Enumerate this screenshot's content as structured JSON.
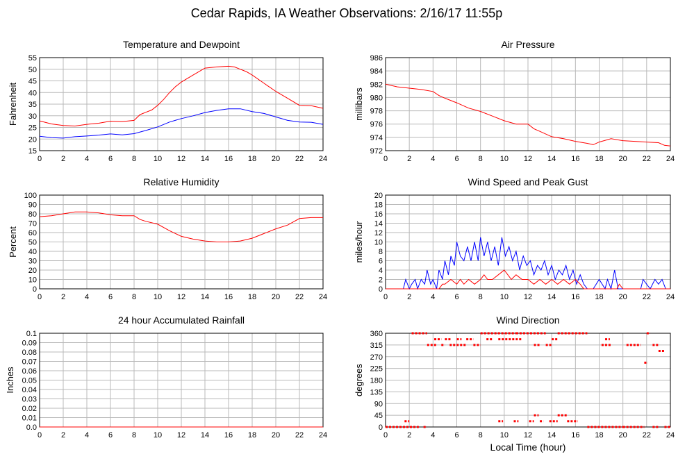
{
  "title": "Cedar Rapids, IA Weather Observations: 2/16/17 11:55p",
  "xlabel": "Local Time (hour)",
  "colors": {
    "red": "#ff0000",
    "blue": "#0000ff",
    "grid": "#b8b8b8"
  },
  "chart_data": [
    {
      "id": "temp",
      "type": "line",
      "title": "Temperature and Dewpoint",
      "ylabel": "Fahrenheit",
      "xlim": [
        0,
        24
      ],
      "ylim": [
        15,
        55
      ],
      "yticks": [
        15,
        20,
        25,
        30,
        35,
        40,
        45,
        50,
        55
      ],
      "ytick_labels": [
        "15",
        "20",
        "25",
        "30",
        "35",
        "40",
        "45",
        "50",
        "55"
      ],
      "xticks": [
        0,
        2,
        4,
        6,
        8,
        10,
        12,
        14,
        16,
        18,
        20,
        22,
        24
      ],
      "series": [
        {
          "color": "red",
          "x": [
            0,
            1,
            2,
            3,
            4,
            5,
            6,
            7,
            8,
            8.5,
            9,
            9.5,
            10,
            10.5,
            11,
            11.5,
            12,
            13,
            14,
            15,
            16,
            16.5,
            17,
            17.5,
            18,
            19,
            20,
            21,
            22,
            23,
            24
          ],
          "y": [
            27.8,
            26.5,
            25.8,
            25.6,
            26.3,
            26.8,
            27.7,
            27.5,
            28.0,
            30.5,
            31.5,
            32.5,
            34.5,
            37.0,
            40.0,
            42.5,
            44.5,
            47.5,
            50.5,
            51.0,
            51.3,
            51.0,
            50.0,
            49.0,
            47.5,
            44.0,
            40.5,
            37.5,
            34.5,
            34.3,
            33.2
          ]
        },
        {
          "color": "blue",
          "x": [
            0,
            1,
            2,
            3,
            4,
            5,
            6,
            7,
            8,
            9,
            10,
            11,
            12,
            13,
            14,
            15,
            16,
            17,
            18,
            19,
            20,
            21,
            22,
            23,
            24
          ],
          "y": [
            21.2,
            20.6,
            20.4,
            21.0,
            21.3,
            21.7,
            22.2,
            21.8,
            22.3,
            23.7,
            25.2,
            27.3,
            28.8,
            30.0,
            31.4,
            32.3,
            33.0,
            33.0,
            31.8,
            31.0,
            29.5,
            28.0,
            27.3,
            27.2,
            26.3
          ]
        }
      ]
    },
    {
      "id": "pressure",
      "type": "line",
      "title": "Air Pressure",
      "ylabel": "millibars",
      "xlim": [
        0,
        24
      ],
      "ylim": [
        972,
        986
      ],
      "yticks": [
        972,
        974,
        976,
        978,
        980,
        982,
        984,
        986
      ],
      "ytick_labels": [
        "972",
        "974",
        "976",
        "978",
        "980",
        "982",
        "984",
        "986"
      ],
      "xticks": [
        0,
        2,
        4,
        6,
        8,
        10,
        12,
        14,
        16,
        18,
        20,
        22,
        24
      ],
      "series": [
        {
          "color": "red",
          "x": [
            0,
            1,
            2,
            3,
            4,
            4.5,
            5,
            6,
            7,
            8,
            9,
            10,
            11,
            12,
            12.5,
            13,
            14,
            15,
            16,
            17,
            17.5,
            18,
            19,
            20,
            21,
            22,
            23,
            23.5,
            24
          ],
          "y": [
            982.0,
            981.6,
            981.4,
            981.2,
            980.9,
            980.3,
            979.9,
            979.2,
            978.4,
            977.9,
            977.2,
            976.5,
            976.0,
            976.0,
            975.3,
            974.9,
            974.1,
            973.8,
            973.4,
            973.1,
            972.9,
            973.3,
            973.8,
            973.5,
            973.4,
            973.3,
            973.2,
            972.8,
            972.7
          ]
        }
      ]
    },
    {
      "id": "humidity",
      "type": "line",
      "title": "Relative Humidity",
      "ylabel": "Percent",
      "xlim": [
        0,
        24
      ],
      "ylim": [
        0,
        100
      ],
      "yticks": [
        0,
        10,
        20,
        30,
        40,
        50,
        60,
        70,
        80,
        90,
        100
      ],
      "ytick_labels": [
        "0",
        "10",
        "20",
        "30",
        "40",
        "50",
        "60",
        "70",
        "80",
        "90",
        "100"
      ],
      "xticks": [
        0,
        2,
        4,
        6,
        8,
        10,
        12,
        14,
        16,
        18,
        20,
        22,
        24
      ],
      "series": [
        {
          "color": "red",
          "x": [
            0,
            1,
            2,
            3,
            4,
            5,
            6,
            7,
            8,
            8.5,
            9,
            10,
            11,
            12,
            13,
            14,
            15,
            16,
            17,
            18,
            19,
            20,
            21,
            22,
            23,
            24
          ],
          "y": [
            77,
            78,
            80,
            82,
            82,
            81,
            79,
            78,
            78,
            74,
            72,
            69,
            62,
            56,
            53,
            51,
            50,
            50,
            51,
            54,
            59,
            64,
            68,
            75,
            76,
            76
          ]
        }
      ]
    },
    {
      "id": "wind",
      "type": "line",
      "title": "Wind Speed and Peak Gust",
      "ylabel": "miles/hour",
      "xlim": [
        0,
        24
      ],
      "ylim": [
        0,
        20
      ],
      "yticks": [
        0,
        2,
        4,
        6,
        8,
        10,
        12,
        14,
        16,
        18,
        20
      ],
      "ytick_labels": [
        "0",
        "2",
        "4",
        "6",
        "8",
        "10",
        "12",
        "14",
        "16",
        "18",
        "20"
      ],
      "xticks": [
        0,
        2,
        4,
        6,
        8,
        10,
        12,
        14,
        16,
        18,
        20,
        22,
        24
      ],
      "series": [
        {
          "color": "blue",
          "x": [
            0,
            1.5,
            1.7,
            2,
            2.2,
            2.5,
            2.7,
            3.0,
            3.3,
            3.5,
            3.8,
            4.0,
            4.3,
            4.5,
            4.8,
            5.0,
            5.3,
            5.5,
            5.8,
            6.0,
            6.3,
            6.6,
            6.9,
            7.2,
            7.5,
            7.8,
            8.0,
            8.3,
            8.6,
            8.9,
            9.2,
            9.5,
            9.8,
            10.1,
            10.4,
            10.7,
            11.0,
            11.3,
            11.6,
            11.9,
            12.2,
            12.5,
            12.8,
            13.1,
            13.4,
            13.7,
            14.0,
            14.3,
            14.6,
            14.9,
            15.2,
            15.5,
            15.8,
            16.1,
            16.4,
            16.7,
            17.0,
            17.5,
            18.0,
            18.5,
            18.7,
            19.0,
            19.3,
            19.6,
            20.0,
            21.5,
            21.7,
            22.0,
            22.3,
            22.7,
            23.0,
            23.3,
            23.6,
            24
          ],
          "y": [
            0,
            0,
            2,
            0,
            1,
            2,
            0,
            2,
            1,
            4,
            1,
            2,
            0,
            4,
            2,
            6,
            3,
            7,
            5,
            10,
            7,
            6,
            9,
            6,
            10,
            6,
            11,
            7,
            10,
            6,
            9,
            5,
            11,
            7,
            9,
            6,
            8,
            4,
            7,
            5,
            6,
            3,
            5,
            4,
            6,
            3,
            5,
            2,
            4,
            3,
            5,
            2,
            4,
            1,
            3,
            1,
            0,
            0,
            2,
            0,
            2,
            0,
            4,
            0,
            0,
            0,
            2,
            1,
            0,
            2,
            1,
            2,
            0,
            0
          ]
        },
        {
          "color": "red",
          "x": [
            0,
            4.5,
            4.8,
            5.0,
            5.5,
            6.0,
            6.3,
            6.6,
            7.0,
            7.5,
            8.0,
            8.3,
            8.6,
            9.0,
            9.5,
            10.0,
            10.3,
            10.6,
            11.0,
            11.5,
            12.0,
            12.5,
            13.0,
            13.5,
            14.0,
            14.5,
            15.0,
            15.5,
            16.0,
            16.4,
            16.7,
            17.0,
            19.5,
            19.7,
            20.0,
            24
          ],
          "y": [
            0,
            0,
            1,
            1,
            2,
            1,
            2,
            1,
            2,
            1,
            2,
            3,
            2,
            2,
            3,
            4,
            3,
            2,
            3,
            2,
            2,
            1,
            2,
            1,
            2,
            1,
            2,
            1,
            2,
            1,
            0,
            0,
            0,
            1,
            0,
            0
          ]
        }
      ]
    },
    {
      "id": "rain",
      "type": "line",
      "title": "24 hour Accumulated Rainfall",
      "ylabel": "Inches",
      "xlim": [
        0,
        24
      ],
      "ylim": [
        0,
        0.1
      ],
      "yticks": [
        0,
        0.01,
        0.02,
        0.03,
        0.04,
        0.05,
        0.06,
        0.07,
        0.08,
        0.09,
        0.1
      ],
      "ytick_labels": [
        "0.0",
        "0.01",
        "0.02",
        "0.03",
        "0.04",
        "0.05",
        "0.06",
        "0.07",
        "0.08",
        "0.09",
        "0.1"
      ],
      "xticks": [
        0,
        2,
        4,
        6,
        8,
        10,
        12,
        14,
        16,
        18,
        20,
        22,
        24
      ],
      "series": [
        {
          "color": "red",
          "x": [
            0,
            24
          ],
          "y": [
            0,
            0
          ]
        }
      ]
    },
    {
      "id": "winddir",
      "type": "scatter",
      "title": "Wind Direction",
      "ylabel": "degrees",
      "xlabel": "Local Time (hour)",
      "xlim": [
        0,
        24
      ],
      "ylim": [
        0,
        360
      ],
      "yticks": [
        0,
        45,
        90,
        135,
        180,
        225,
        270,
        315,
        360
      ],
      "ytick_labels": [
        "0",
        "45",
        "90",
        "135",
        "180",
        "225",
        "270",
        "315",
        "360"
      ],
      "xticks": [
        0,
        2,
        4,
        6,
        8,
        10,
        12,
        14,
        16,
        18,
        20,
        22,
        24
      ],
      "series": [
        {
          "color": "red",
          "segments": [
            {
              "x0": 0,
              "x1": 2.8,
              "y": 0
            },
            {
              "x0": 1.6,
              "x1": 2.0,
              "y": 22
            },
            {
              "x0": 3.2,
              "x1": 3.5,
              "y": 0
            },
            {
              "x0": 2.2,
              "x1": 3.5,
              "y": 360
            },
            {
              "x0": 3.5,
              "x1": 4.3,
              "y": 315
            },
            {
              "x0": 4.1,
              "x1": 4.7,
              "y": 337
            },
            {
              "x0": 4.7,
              "x1": 5.0,
              "y": 315
            },
            {
              "x0": 5.0,
              "x1": 5.5,
              "y": 337
            },
            {
              "x0": 5.4,
              "x1": 6.8,
              "y": 315
            },
            {
              "x0": 6.0,
              "x1": 6.4,
              "y": 337
            },
            {
              "x0": 6.8,
              "x1": 7.4,
              "y": 337
            },
            {
              "x0": 7.4,
              "x1": 8.0,
              "y": 315
            },
            {
              "x0": 8.0,
              "x1": 11.0,
              "y": 360
            },
            {
              "x0": 8.5,
              "x1": 9.0,
              "y": 337
            },
            {
              "x0": 9.5,
              "x1": 11.5,
              "y": 337
            },
            {
              "x0": 11.0,
              "x1": 13.5,
              "y": 360
            },
            {
              "x0": 12.5,
              "x1": 13.0,
              "y": 315
            },
            {
              "x0": 13.5,
              "x1": 14.0,
              "y": 315
            },
            {
              "x0": 14.0,
              "x1": 14.5,
              "y": 337
            },
            {
              "x0": 14.5,
              "x1": 17.0,
              "y": 360
            },
            {
              "x0": 18.2,
              "x1": 19.0,
              "y": 315
            },
            {
              "x0": 18.5,
              "x1": 18.9,
              "y": 337
            },
            {
              "x0": 20.3,
              "x1": 21.5,
              "y": 315
            },
            {
              "x0": 22.0,
              "x1": 22.3,
              "y": 360
            },
            {
              "x0": 22.5,
              "x1": 23.0,
              "y": 315
            },
            {
              "x0": 23.0,
              "x1": 23.5,
              "y": 292
            },
            {
              "x0": 21.8,
              "x1": 22.1,
              "y": 247
            },
            {
              "x0": 9.5,
              "x1": 9.9,
              "y": 22
            },
            {
              "x0": 10.8,
              "x1": 11.2,
              "y": 22
            },
            {
              "x0": 12.1,
              "x1": 12.5,
              "y": 22
            },
            {
              "x0": 12.5,
              "x1": 12.9,
              "y": 45
            },
            {
              "x0": 13.0,
              "x1": 13.3,
              "y": 22
            },
            {
              "x0": 13.8,
              "x1": 14.5,
              "y": 22
            },
            {
              "x0": 14.5,
              "x1": 15.3,
              "y": 45
            },
            {
              "x0": 15.3,
              "x1": 16.2,
              "y": 22
            },
            {
              "x0": 17.0,
              "x1": 20.0,
              "y": 0
            },
            {
              "x0": 20.0,
              "x1": 21.8,
              "y": 0
            },
            {
              "x0": 22.5,
              "x1": 23.0,
              "y": 0
            },
            {
              "x0": 23.5,
              "x1": 24.0,
              "y": 0
            }
          ]
        }
      ]
    }
  ]
}
